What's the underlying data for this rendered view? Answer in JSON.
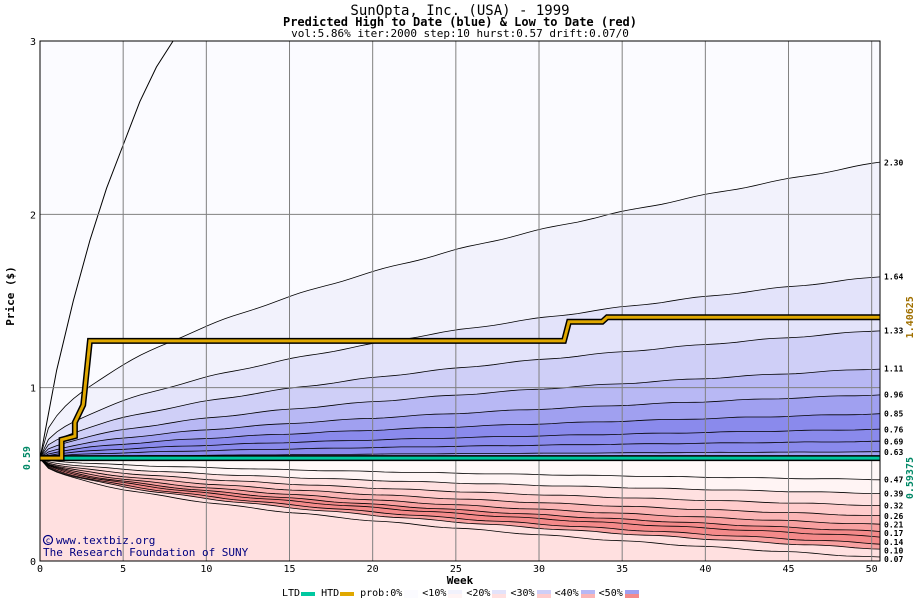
{
  "header": {
    "title": "SunOpta, Inc. (USA) - 1999",
    "subtitle": "Predicted High to Date (blue) &  Low to Date (red)",
    "params": "vol:5.86% iter:2000 step:10 hurst:0.57 drift:0.07/0"
  },
  "watermark": {
    "site": "www.textbiz.org",
    "org": "The Research Foundation of SUNY"
  },
  "legend": {
    "ltd": "LTD",
    "htd": "HTD",
    "prob": "prob:0%",
    "b10": "<10%",
    "b20": "<20%",
    "b30": "<30%",
    "b40": "<40%",
    "b50": "<50%"
  },
  "colors": {
    "htd_line": "#e0a800",
    "ltd_line": "#00c8a0",
    "current_label": "#008866",
    "high_label": "#a07000",
    "blue_shades": [
      "#f2f2fc",
      "#e3e3fa",
      "#cfcff7",
      "#b8b8f4",
      "#a0a0f0",
      "#8a8aec"
    ],
    "red_shades": [
      "#fff4f4",
      "#ffe0e0",
      "#ffcccc",
      "#fbb5b5",
      "#f8a0a0",
      "#f48a8a"
    ]
  },
  "chart_data": {
    "type": "area",
    "title": "SunOpta, Inc. (USA) - 1999",
    "xlabel": "Week",
    "ylabel": "Price ($)",
    "xlim": [
      0,
      50.5
    ],
    "ylim": [
      0,
      3
    ],
    "xticks": [
      0,
      5,
      10,
      15,
      20,
      25,
      30,
      35,
      40,
      45,
      50
    ],
    "yticks": [
      0,
      1,
      2,
      3
    ],
    "grid": true,
    "current_price": 0.59375,
    "current_price_label": "0.59375",
    "current_price_axis_label": "0.59",
    "high_to_date_label": "1.40625",
    "upper_quantiles": [
      {
        "end": 2.3,
        "label": "2.30"
      },
      {
        "end": 1.64,
        "label": "1.64"
      },
      {
        "end": 1.33,
        "label": "1.33"
      },
      {
        "end": 1.11,
        "label": "1.11"
      },
      {
        "end": 0.96,
        "label": "0.96"
      },
      {
        "end": 0.85,
        "label": "0.85"
      },
      {
        "end": 0.76,
        "label": "0.76"
      },
      {
        "end": 0.69,
        "label": "0.69"
      },
      {
        "end": 0.63,
        "label": "0.63"
      }
    ],
    "lower_quantiles": [
      {
        "end": 0.47,
        "label": "0.47"
      },
      {
        "end": 0.39,
        "label": "0.39"
      },
      {
        "end": 0.32,
        "label": "0.32"
      },
      {
        "end": 0.26,
        "label": "0.26"
      },
      {
        "end": 0.21,
        "label": "0.21"
      },
      {
        "end": 0.17,
        "label": "0.17"
      },
      {
        "end": 0.14,
        "label": "0.14"
      },
      {
        "end": 0.1,
        "label": "0.10"
      },
      {
        "end": 0.07,
        "label": "0.07"
      }
    ],
    "outer_upper_curve": {
      "x": [
        0,
        1,
        2,
        3,
        4,
        5,
        6,
        7,
        8
      ],
      "y": [
        0.59,
        1.1,
        1.5,
        1.85,
        2.15,
        2.4,
        2.65,
        2.85,
        3.0
      ]
    },
    "htd_path": {
      "x": [
        0,
        1.3,
        1.3,
        2.1,
        2.1,
        2.6,
        3.0,
        31.5,
        31.8,
        33.8,
        34.1,
        50.5
      ],
      "y": [
        0.59375,
        0.59375,
        0.7,
        0.72,
        0.8,
        0.9,
        1.27,
        1.27,
        1.38,
        1.38,
        1.40625,
        1.40625
      ]
    },
    "ltd_path": {
      "x": [
        0,
        50.5
      ],
      "y": [
        0.59375,
        0.59375
      ]
    }
  }
}
